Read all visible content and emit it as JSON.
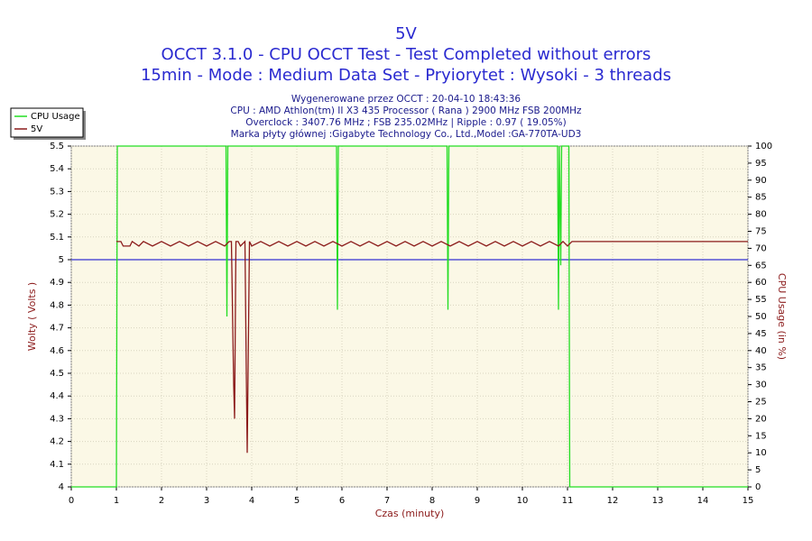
{
  "chart_data": {
    "type": "line",
    "title": "5V",
    "subtitle": [
      "OCCT 3.1.0 - CPU OCCT Test - Test Completed without errors",
      "15min - Mode : Medium Data Set - Pryiorytet : Wysoki - 3 threads"
    ],
    "info": [
      "Wygenerowane przez OCCT : 20-04-10 18:43:36",
      "CPU : AMD Athlon(tm) II X3 435 Processor ( Rana ) 2900 MHz FSB 200MHz",
      "Overclock : 3407.76 MHz ; FSB 235.02MHz | Ripple : 0.97 ( 19.05%)",
      "Marka płyty głównej :Gigabyte Technology Co., Ltd.,Model :GA-770TA-UD3"
    ],
    "xlabel": "Czas (minuty)",
    "ylabel": "Wolty ( Volts )",
    "y2label": "CPU Usage (in %)",
    "xlim": [
      0,
      15
    ],
    "xticks": [
      0,
      1,
      2,
      3,
      4,
      5,
      6,
      7,
      8,
      9,
      10,
      11,
      12,
      13,
      14,
      15
    ],
    "ylim": [
      4,
      5.5
    ],
    "yticks": [
      4,
      4.1,
      4.2,
      4.3,
      4.4,
      4.5,
      4.6,
      4.7,
      4.8,
      4.9,
      5,
      5.1,
      5.2,
      5.3,
      5.4,
      5.5
    ],
    "y2lim": [
      0,
      100
    ],
    "y2ticks": [
      0,
      5,
      10,
      15,
      20,
      25,
      30,
      35,
      40,
      45,
      50,
      55,
      60,
      65,
      70,
      75,
      80,
      85,
      90,
      95,
      100
    ],
    "reference_line": {
      "value": 5,
      "color": "#0000cc"
    },
    "grid": true,
    "legend": "top-left",
    "series": [
      {
        "name": "CPU Usage",
        "color": "#22dd22",
        "axis": "y2",
        "x": [
          0,
          1.0,
          1.02,
          3.43,
          3.45,
          3.47,
          5.88,
          5.9,
          5.92,
          8.33,
          8.35,
          8.37,
          10.78,
          10.8,
          10.82,
          10.85,
          10.87,
          11.03,
          11.05,
          15
        ],
        "values": [
          0,
          0,
          100,
          100,
          50,
          100,
          100,
          52,
          100,
          100,
          52,
          100,
          100,
          52,
          100,
          65,
          100,
          100,
          0,
          0
        ]
      },
      {
        "name": "5V",
        "color": "#8b1a1a",
        "x": [
          1.0,
          1.1,
          1.15,
          1.3,
          1.35,
          1.5,
          1.6,
          1.8,
          2.0,
          2.2,
          2.4,
          2.6,
          2.8,
          3.0,
          3.2,
          3.4,
          3.5,
          3.55,
          3.6,
          3.62,
          3.65,
          3.7,
          3.75,
          3.85,
          3.88,
          3.9,
          3.95,
          4.0,
          4.2,
          4.4,
          4.6,
          4.8,
          5.0,
          5.2,
          5.4,
          5.6,
          5.8,
          6.0,
          6.2,
          6.4,
          6.6,
          6.8,
          7.0,
          7.2,
          7.4,
          7.6,
          7.8,
          8.0,
          8.2,
          8.4,
          8.6,
          8.8,
          9.0,
          9.2,
          9.4,
          9.6,
          9.8,
          10.0,
          10.2,
          10.4,
          10.6,
          10.8,
          10.9,
          11.0,
          11.1,
          15
        ],
        "values": [
          5.08,
          5.08,
          5.06,
          5.06,
          5.08,
          5.06,
          5.08,
          5.06,
          5.08,
          5.06,
          5.08,
          5.06,
          5.08,
          5.06,
          5.08,
          5.06,
          5.08,
          5.08,
          4.45,
          4.3,
          5.08,
          5.08,
          5.06,
          5.08,
          4.5,
          4.15,
          5.08,
          5.06,
          5.08,
          5.06,
          5.08,
          5.06,
          5.08,
          5.06,
          5.08,
          5.06,
          5.08,
          5.06,
          5.08,
          5.06,
          5.08,
          5.06,
          5.08,
          5.06,
          5.08,
          5.06,
          5.08,
          5.06,
          5.08,
          5.06,
          5.08,
          5.06,
          5.08,
          5.06,
          5.08,
          5.06,
          5.08,
          5.06,
          5.08,
          5.06,
          5.08,
          5.06,
          5.08,
          5.06,
          5.08,
          5.08
        ]
      }
    ]
  }
}
